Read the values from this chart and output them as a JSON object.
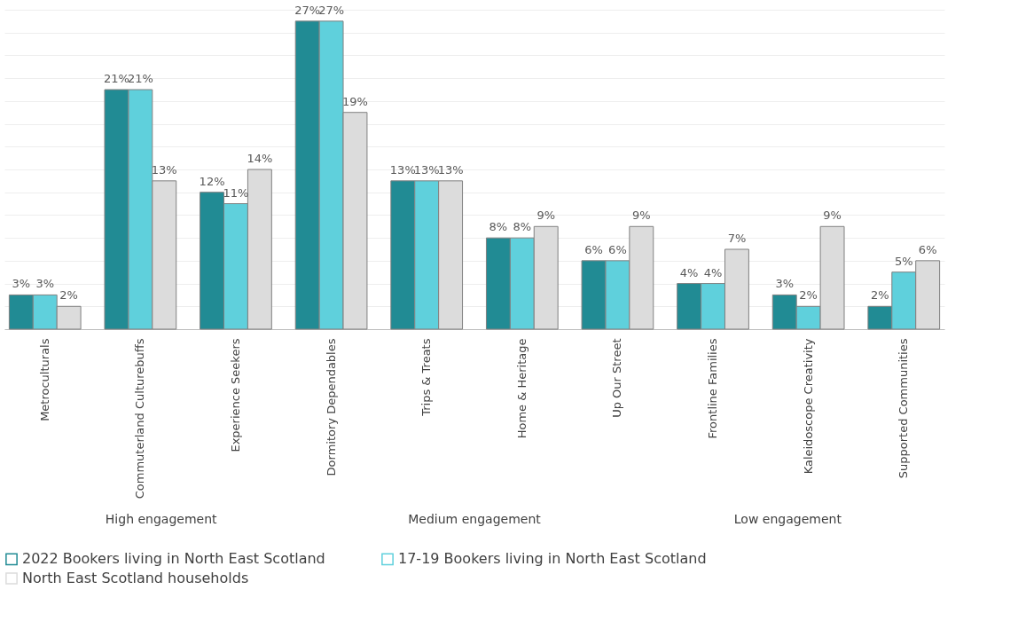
{
  "chart_data": {
    "type": "bar",
    "categories": [
      "Metroculturals",
      "Commuterland Culturebuffs",
      "Experience Seekers",
      "Dormitory Dependables",
      "Trips & Treats",
      "Home & Heritage",
      "Up Our Street",
      "Frontline Families",
      "Kaleidoscope Creativity",
      "Supported Communities"
    ],
    "series": [
      {
        "name": "2022 Bookers living in North East Scotland",
        "color": "#218b94",
        "values": [
          3,
          21,
          12,
          27,
          13,
          8,
          6,
          4,
          3,
          2
        ],
        "value_labels": [
          "3%",
          "21%",
          "12%",
          "27%",
          "13%",
          "8%",
          "6%",
          "4%",
          "3%",
          "2%"
        ]
      },
      {
        "name": "17-19 Bookers living in North East Scotland",
        "color": "#5fd0dc",
        "values": [
          3,
          21,
          11,
          27,
          13,
          8,
          6,
          4,
          2,
          5
        ],
        "value_labels": [
          "3%",
          "21%",
          "11%",
          "27%",
          "13%",
          "8%",
          "6%",
          "4%",
          "2%",
          "5%"
        ]
      },
      {
        "name": "North East Scotland households",
        "color": "#dcdcdc",
        "values": [
          2,
          13,
          14,
          19,
          13,
          9,
          9,
          7,
          9,
          6
        ],
        "value_labels": [
          "2%",
          "13%",
          "14%",
          "19%",
          "13%",
          "9%",
          "9%",
          "7%",
          "9%",
          "6%"
        ]
      }
    ],
    "tick_labels": "x",
    "grid": "y",
    "legend": "bottom left",
    "annotations": [
      "High engagement",
      "Medium engagement",
      "Low engagement"
    ]
  }
}
